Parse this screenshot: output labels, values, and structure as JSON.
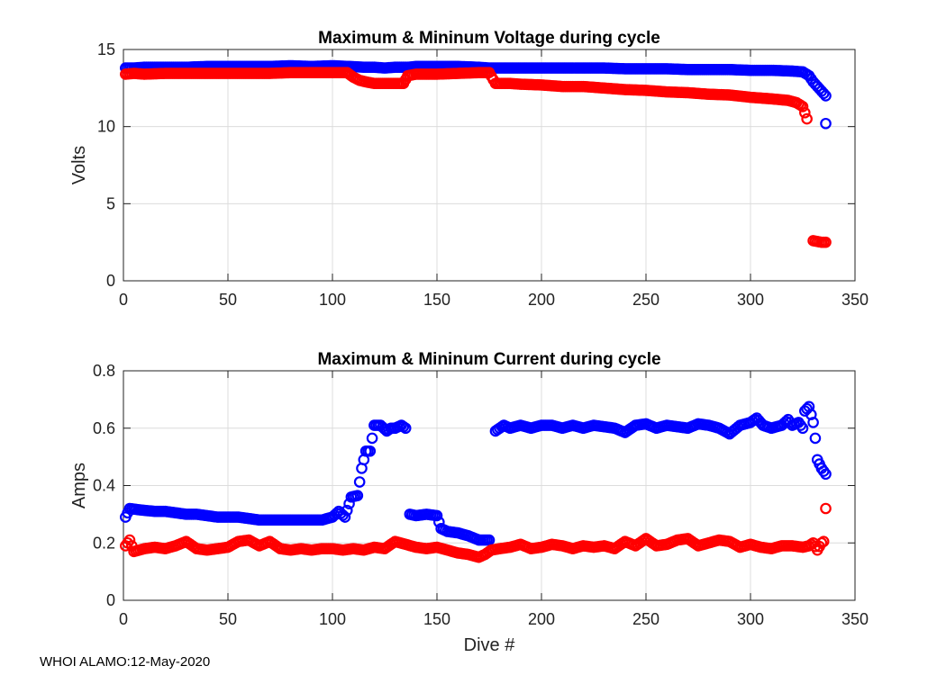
{
  "footer": "WHOI ALAMO:12-May-2020",
  "colors": {
    "max": "#0000ff",
    "min": "#ff0000"
  },
  "chart_data": [
    {
      "type": "scatter",
      "title": "Maximum & Mininum Voltage during cycle",
      "xlabel": "",
      "ylabel": "Volts",
      "xlim": [
        0,
        350
      ],
      "ylim": [
        0,
        15
      ],
      "xticks": [
        0,
        50,
        100,
        150,
        200,
        250,
        300,
        350
      ],
      "yticks": [
        0,
        5,
        10,
        15
      ],
      "grid": true,
      "series": [
        {
          "name": "Maximum",
          "color": "blue",
          "points": [
            [
              1,
              13.8
            ],
            [
              5,
              13.8
            ],
            [
              10,
              13.85
            ],
            [
              20,
              13.85
            ],
            [
              30,
              13.85
            ],
            [
              40,
              13.9
            ],
            [
              50,
              13.9
            ],
            [
              60,
              13.9
            ],
            [
              70,
              13.9
            ],
            [
              80,
              13.95
            ],
            [
              90,
              13.9
            ],
            [
              100,
              13.95
            ],
            [
              108,
              13.9
            ],
            [
              115,
              13.85
            ],
            [
              120,
              13.85
            ],
            [
              125,
              13.8
            ],
            [
              130,
              13.85
            ],
            [
              136,
              13.85
            ],
            [
              140,
              13.9
            ],
            [
              150,
              13.9
            ],
            [
              160,
              13.9
            ],
            [
              170,
              13.85
            ],
            [
              175,
              13.8
            ],
            [
              180,
              13.8
            ],
            [
              190,
              13.8
            ],
            [
              200,
              13.8
            ],
            [
              210,
              13.8
            ],
            [
              220,
              13.8
            ],
            [
              230,
              13.8
            ],
            [
              240,
              13.75
            ],
            [
              250,
              13.75
            ],
            [
              260,
              13.75
            ],
            [
              270,
              13.7
            ],
            [
              280,
              13.7
            ],
            [
              290,
              13.7
            ],
            [
              300,
              13.65
            ],
            [
              310,
              13.65
            ],
            [
              320,
              13.6
            ],
            [
              325,
              13.55
            ],
            [
              328,
              13.3
            ],
            [
              330,
              12.9
            ],
            [
              332,
              12.6
            ],
            [
              334,
              12.3
            ],
            [
              336,
              12.0
            ],
            [
              336,
              10.2
            ]
          ]
        },
        {
          "name": "Minimum",
          "color": "red",
          "points": [
            [
              1,
              13.4
            ],
            [
              5,
              13.45
            ],
            [
              10,
              13.4
            ],
            [
              20,
              13.45
            ],
            [
              30,
              13.45
            ],
            [
              40,
              13.45
            ],
            [
              50,
              13.45
            ],
            [
              60,
              13.45
            ],
            [
              70,
              13.45
            ],
            [
              80,
              13.5
            ],
            [
              90,
              13.5
            ],
            [
              100,
              13.5
            ],
            [
              107,
              13.5
            ],
            [
              110,
              13.2
            ],
            [
              113,
              13.0
            ],
            [
              116,
              12.9
            ],
            [
              120,
              12.8
            ],
            [
              125,
              12.8
            ],
            [
              130,
              12.8
            ],
            [
              134,
              12.8
            ],
            [
              136,
              13.3
            ],
            [
              140,
              13.4
            ],
            [
              150,
              13.4
            ],
            [
              160,
              13.45
            ],
            [
              170,
              13.5
            ],
            [
              175,
              13.5
            ],
            [
              178,
              12.8
            ],
            [
              185,
              12.8
            ],
            [
              190,
              12.75
            ],
            [
              200,
              12.7
            ],
            [
              210,
              12.6
            ],
            [
              220,
              12.6
            ],
            [
              230,
              12.5
            ],
            [
              240,
              12.4
            ],
            [
              250,
              12.35
            ],
            [
              260,
              12.25
            ],
            [
              270,
              12.2
            ],
            [
              280,
              12.1
            ],
            [
              290,
              12.05
            ],
            [
              300,
              11.9
            ],
            [
              310,
              11.8
            ],
            [
              318,
              11.7
            ],
            [
              322,
              11.55
            ],
            [
              325,
              11.3
            ],
            [
              326,
              10.9
            ],
            [
              327,
              10.5
            ],
            [
              330,
              2.6
            ],
            [
              332,
              2.55
            ],
            [
              334,
              2.5
            ],
            [
              336,
              2.5
            ]
          ]
        }
      ]
    },
    {
      "type": "scatter",
      "title": "Maximum & Mininum Current during cycle",
      "xlabel": "Dive #",
      "ylabel": "Amps",
      "xlim": [
        0,
        350
      ],
      "ylim": [
        0,
        0.8
      ],
      "xticks": [
        0,
        50,
        100,
        150,
        200,
        250,
        300,
        350
      ],
      "yticks": [
        0,
        0.2,
        0.4,
        0.6,
        0.8
      ],
      "grid": true,
      "series": [
        {
          "name": "Maximum",
          "color": "blue",
          "points": [
            [
              1,
              0.29
            ],
            [
              3,
              0.32
            ],
            [
              8,
              0.315
            ],
            [
              15,
              0.31
            ],
            [
              20,
              0.31
            ],
            [
              25,
              0.305
            ],
            [
              30,
              0.3
            ],
            [
              35,
              0.3
            ],
            [
              40,
              0.295
            ],
            [
              45,
              0.29
            ],
            [
              50,
              0.29
            ],
            [
              55,
              0.29
            ],
            [
              60,
              0.285
            ],
            [
              65,
              0.28
            ],
            [
              70,
              0.28
            ],
            [
              75,
              0.28
            ],
            [
              80,
              0.28
            ],
            [
              85,
              0.28
            ],
            [
              90,
              0.28
            ],
            [
              95,
              0.28
            ],
            [
              100,
              0.29
            ],
            [
              103,
              0.31
            ],
            [
              106,
              0.29
            ],
            [
              109,
              0.36
            ],
            [
              112,
              0.365
            ],
            [
              114,
              0.46
            ],
            [
              116,
              0.52
            ],
            [
              118,
              0.52
            ],
            [
              120,
              0.61
            ],
            [
              123,
              0.61
            ],
            [
              126,
              0.59
            ],
            [
              128,
              0.6
            ],
            [
              130,
              0.6
            ],
            [
              133,
              0.61
            ],
            [
              135,
              0.6
            ],
            [
              137,
              0.3
            ],
            [
              140,
              0.295
            ],
            [
              145,
              0.3
            ],
            [
              150,
              0.295
            ],
            [
              152,
              0.25
            ],
            [
              155,
              0.24
            ],
            [
              160,
              0.235
            ],
            [
              165,
              0.225
            ],
            [
              170,
              0.21
            ],
            [
              175,
              0.21
            ],
            [
              178,
              0.59
            ],
            [
              182,
              0.61
            ],
            [
              185,
              0.6
            ],
            [
              190,
              0.61
            ],
            [
              195,
              0.6
            ],
            [
              200,
              0.61
            ],
            [
              205,
              0.61
            ],
            [
              210,
              0.6
            ],
            [
              215,
              0.61
            ],
            [
              220,
              0.6
            ],
            [
              225,
              0.61
            ],
            [
              230,
              0.605
            ],
            [
              235,
              0.6
            ],
            [
              240,
              0.585
            ],
            [
              245,
              0.61
            ],
            [
              250,
              0.615
            ],
            [
              255,
              0.6
            ],
            [
              260,
              0.61
            ],
            [
              265,
              0.605
            ],
            [
              270,
              0.6
            ],
            [
              275,
              0.615
            ],
            [
              280,
              0.61
            ],
            [
              285,
              0.6
            ],
            [
              290,
              0.58
            ],
            [
              295,
              0.61
            ],
            [
              300,
              0.62
            ],
            [
              303,
              0.635
            ],
            [
              306,
              0.61
            ],
            [
              310,
              0.6
            ],
            [
              315,
              0.61
            ],
            [
              318,
              0.63
            ],
            [
              320,
              0.61
            ],
            [
              323,
              0.62
            ],
            [
              325,
              0.6
            ],
            [
              326,
              0.66
            ],
            [
              328,
              0.675
            ],
            [
              330,
              0.62
            ],
            [
              331,
              0.565
            ],
            [
              332,
              0.49
            ],
            [
              333,
              0.475
            ],
            [
              334,
              0.46
            ],
            [
              336,
              0.44
            ]
          ]
        },
        {
          "name": "Minimum",
          "color": "red",
          "points": [
            [
              1,
              0.19
            ],
            [
              3,
              0.21
            ],
            [
              5,
              0.17
            ],
            [
              10,
              0.18
            ],
            [
              15,
              0.185
            ],
            [
              20,
              0.18
            ],
            [
              25,
              0.19
            ],
            [
              30,
              0.205
            ],
            [
              35,
              0.18
            ],
            [
              40,
              0.175
            ],
            [
              45,
              0.18
            ],
            [
              50,
              0.185
            ],
            [
              55,
              0.205
            ],
            [
              60,
              0.21
            ],
            [
              65,
              0.19
            ],
            [
              70,
              0.205
            ],
            [
              75,
              0.18
            ],
            [
              80,
              0.175
            ],
            [
              85,
              0.18
            ],
            [
              90,
              0.175
            ],
            [
              95,
              0.18
            ],
            [
              100,
              0.18
            ],
            [
              105,
              0.175
            ],
            [
              110,
              0.18
            ],
            [
              115,
              0.175
            ],
            [
              120,
              0.185
            ],
            [
              125,
              0.18
            ],
            [
              130,
              0.205
            ],
            [
              135,
              0.195
            ],
            [
              140,
              0.185
            ],
            [
              145,
              0.18
            ],
            [
              150,
              0.185
            ],
            [
              155,
              0.175
            ],
            [
              160,
              0.165
            ],
            [
              165,
              0.16
            ],
            [
              170,
              0.15
            ],
            [
              173,
              0.16
            ],
            [
              176,
              0.175
            ],
            [
              180,
              0.18
            ],
            [
              185,
              0.185
            ],
            [
              190,
              0.195
            ],
            [
              195,
              0.18
            ],
            [
              200,
              0.185
            ],
            [
              205,
              0.195
            ],
            [
              210,
              0.19
            ],
            [
              215,
              0.18
            ],
            [
              220,
              0.19
            ],
            [
              225,
              0.185
            ],
            [
              230,
              0.19
            ],
            [
              235,
              0.18
            ],
            [
              240,
              0.205
            ],
            [
              245,
              0.19
            ],
            [
              250,
              0.215
            ],
            [
              255,
              0.19
            ],
            [
              260,
              0.195
            ],
            [
              265,
              0.21
            ],
            [
              270,
              0.215
            ],
            [
              275,
              0.19
            ],
            [
              280,
              0.2
            ],
            [
              285,
              0.21
            ],
            [
              290,
              0.205
            ],
            [
              295,
              0.185
            ],
            [
              300,
              0.195
            ],
            [
              305,
              0.185
            ],
            [
              310,
              0.18
            ],
            [
              315,
              0.19
            ],
            [
              320,
              0.19
            ],
            [
              325,
              0.185
            ],
            [
              328,
              0.19
            ],
            [
              330,
              0.2
            ],
            [
              332,
              0.175
            ],
            [
              334,
              0.2
            ],
            [
              335,
              0.205
            ],
            [
              336,
              0.32
            ]
          ]
        }
      ]
    }
  ]
}
